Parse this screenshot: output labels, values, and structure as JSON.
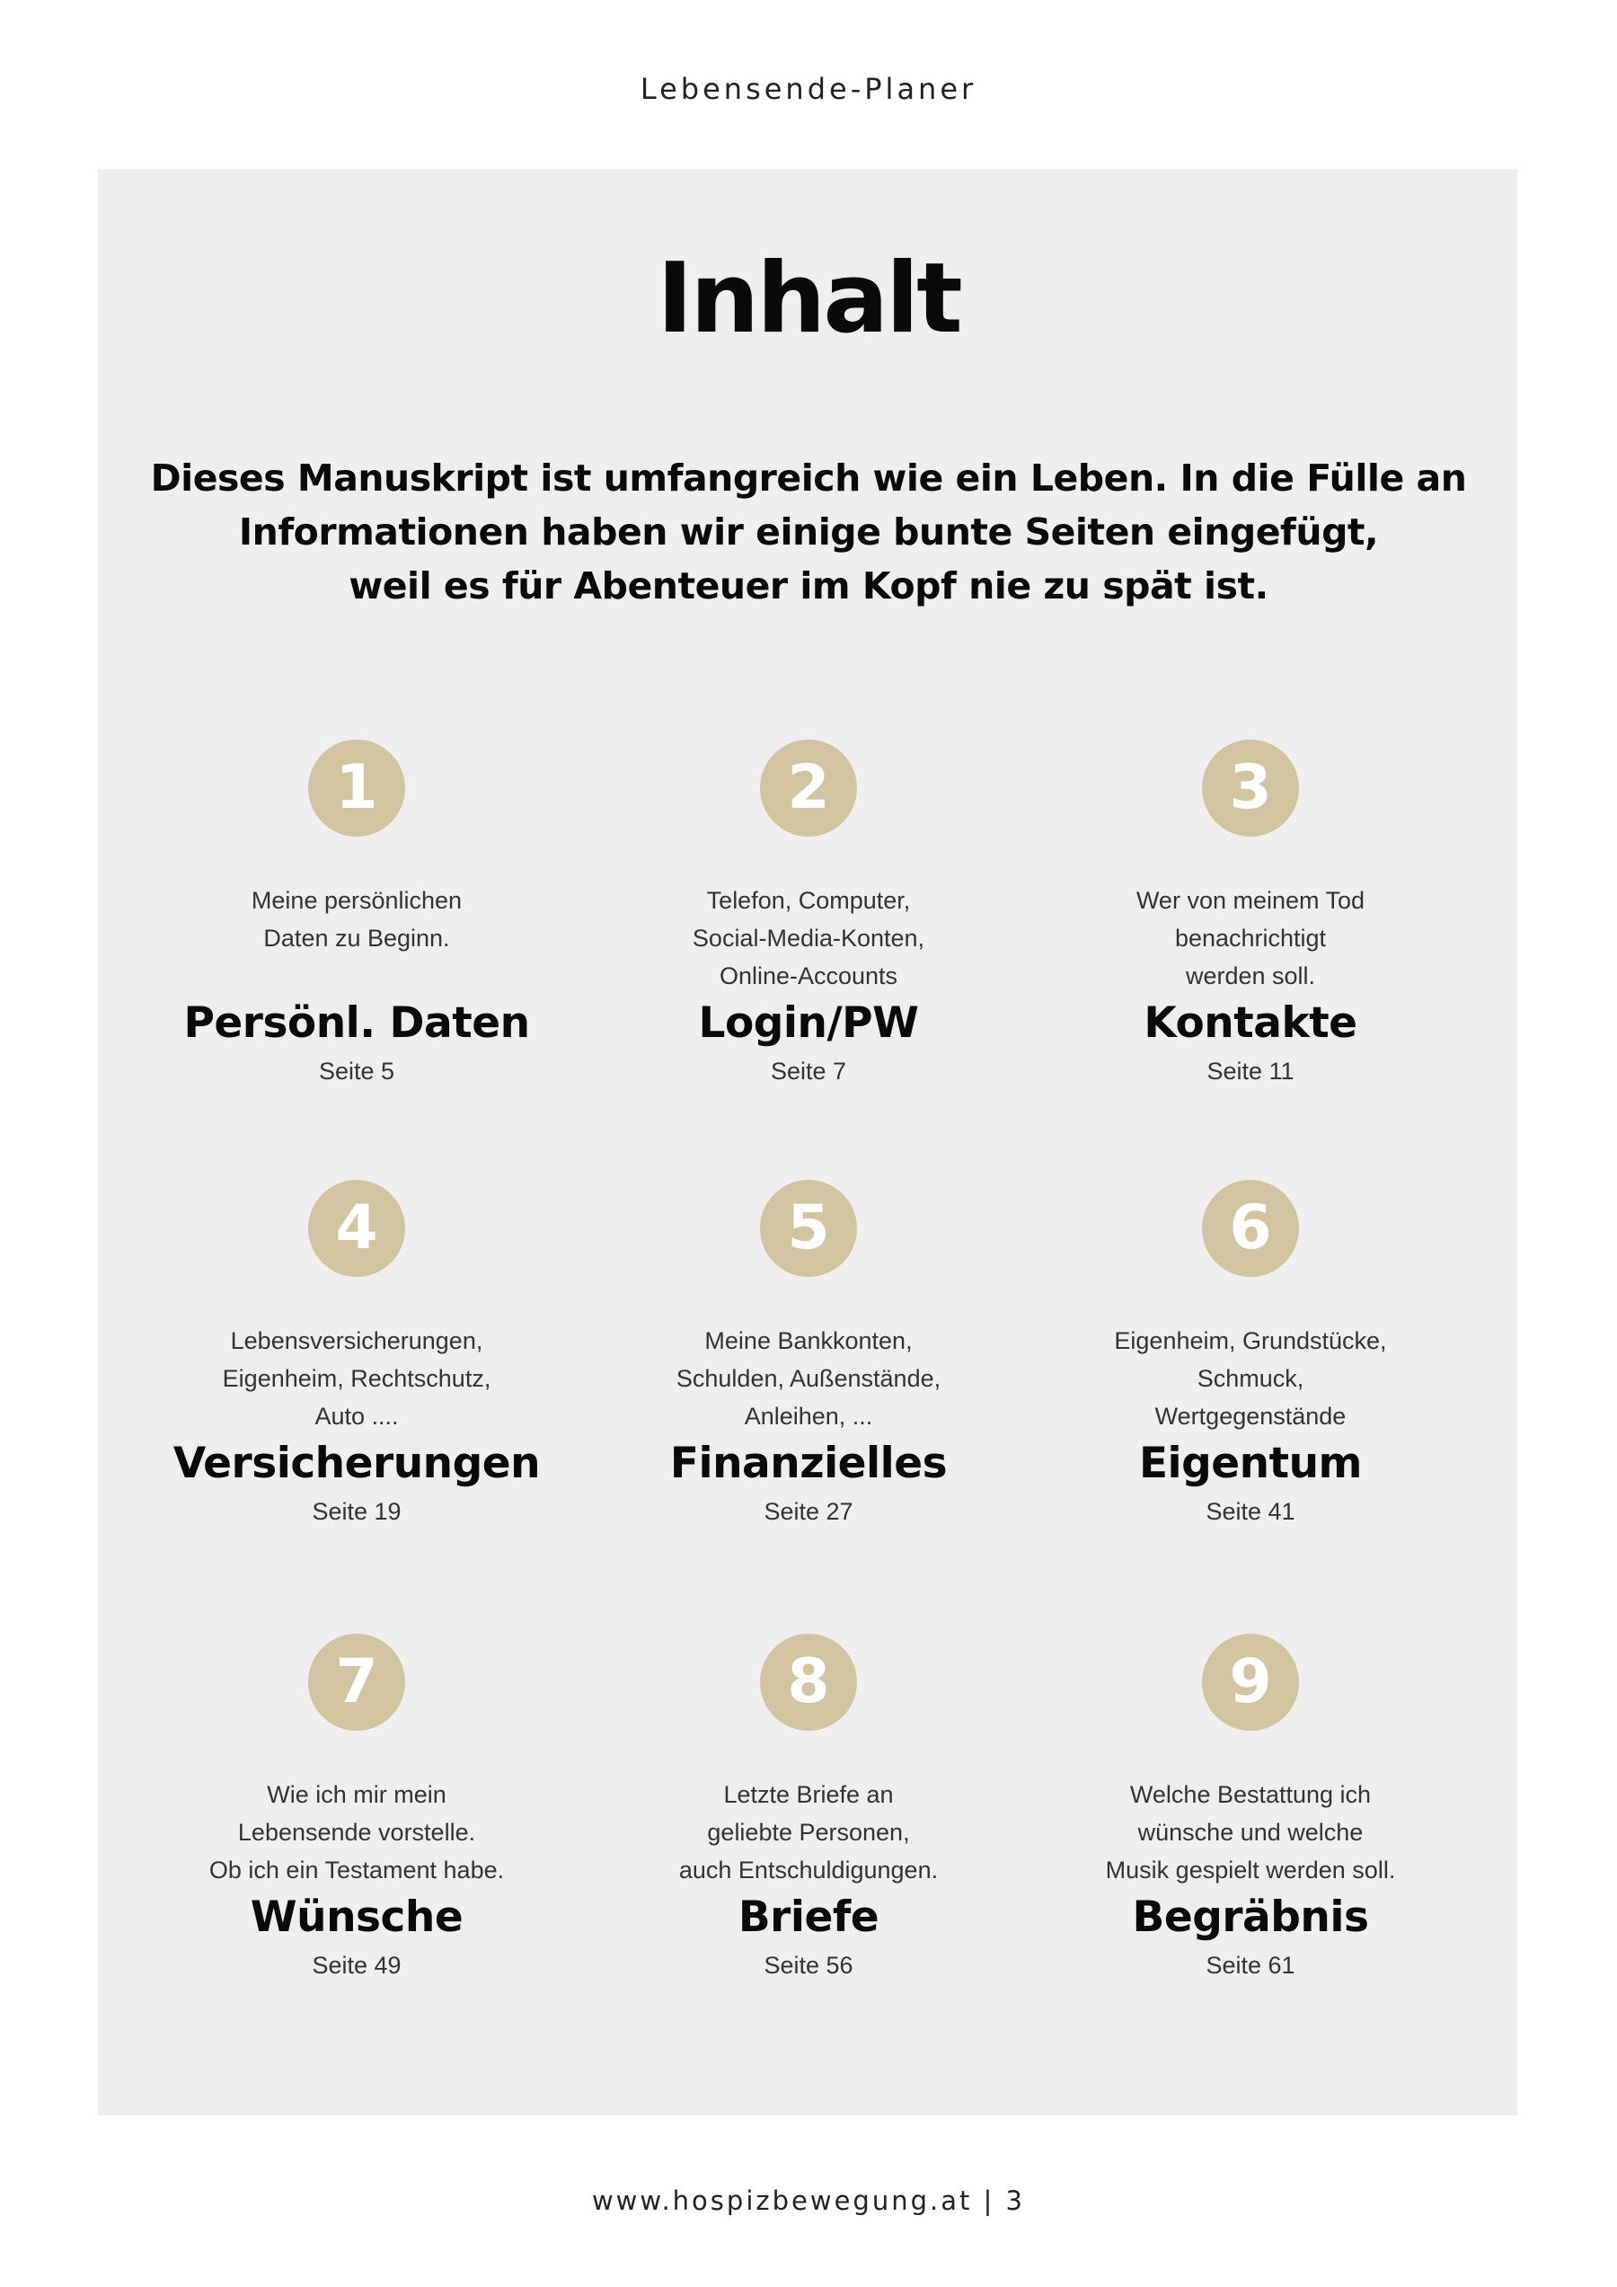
{
  "header": {
    "title": "Lebensende-Planer"
  },
  "main": {
    "heading": "Inhalt",
    "intro_lines": [
      "Dieses Manuskript ist umfangreich wie ein Leben. In die Fülle an",
      "Informationen haben wir einige bunte Seiten eingefügt,",
      "weil es für Abenteuer im Kopf nie zu spät ist."
    ],
    "accent_color": "#d0c4a1",
    "items": [
      {
        "number": "1",
        "desc": [
          "Meine persönlichen",
          "Daten zu Beginn.",
          ""
        ],
        "title": "Persönl. Daten",
        "page": "Seite 5"
      },
      {
        "number": "2",
        "desc": [
          "Telefon, Computer,",
          "Social-Media-Konten,",
          "Online-Accounts"
        ],
        "title": "Login/PW",
        "page": "Seite 7"
      },
      {
        "number": "3",
        "desc": [
          "Wer von meinem Tod",
          "benachrichtigt",
          "werden soll."
        ],
        "title": "Kontakte",
        "page": "Seite 11"
      },
      {
        "number": "4",
        "desc": [
          "Lebensversicherungen,",
          "Eigenheim, Rechtschutz,",
          "Auto ...."
        ],
        "title": "Versicherungen",
        "page": "Seite 19"
      },
      {
        "number": "5",
        "desc": [
          "Meine Bankkonten,",
          "Schulden, Außenstände,",
          "Anleihen, ..."
        ],
        "title": "Finanzielles",
        "page": "Seite 27"
      },
      {
        "number": "6",
        "desc": [
          "Eigenheim, Grundstücke,",
          "Schmuck,",
          "Wertgegenstände"
        ],
        "title": "Eigentum",
        "page": "Seite 41"
      },
      {
        "number": "7",
        "desc": [
          "Wie ich mir mein",
          "Lebensende vorstelle.",
          "Ob ich ein Testament habe."
        ],
        "title": "Wünsche",
        "page": "Seite 49"
      },
      {
        "number": "8",
        "desc": [
          "Letzte Briefe an",
          "geliebte Personen,",
          "auch Entschuldigungen."
        ],
        "title": "Briefe",
        "page": "Seite 56"
      },
      {
        "number": "9",
        "desc": [
          "Welche Bestattung ich",
          "wünsche und welche",
          "Musik gespielt werden soll."
        ],
        "title": "Begräbnis",
        "page": "Seite 61"
      }
    ]
  },
  "footer": {
    "text": "www.hospizbewegung.at | 3"
  }
}
